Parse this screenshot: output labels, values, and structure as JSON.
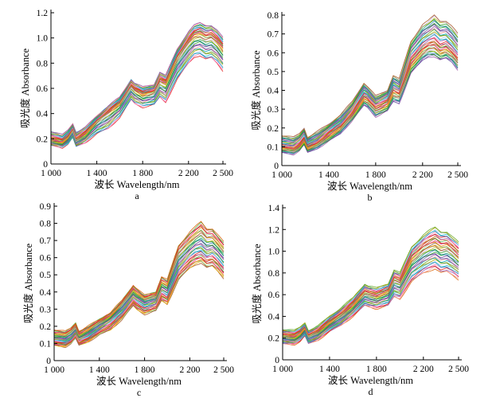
{
  "chart_data": [
    {
      "panel": "a",
      "type": "line",
      "xlabel": "波长  Wavelength/nm",
      "ylabel": "吸光度  Absorbance",
      "xlim": [
        1000,
        2500
      ],
      "ylim": [
        0,
        1.2
      ],
      "xticks": [
        "1 000",
        "1 400",
        "1 800",
        "2 200",
        "2 500"
      ],
      "xtick_values": [
        1000,
        1400,
        1800,
        2200,
        2500
      ],
      "yticks": [
        "0",
        "0.2",
        "0.4",
        "0.6",
        "0.8",
        "1.0",
        "1.2"
      ],
      "ytick_values": [
        0,
        0.2,
        0.4,
        0.6,
        0.8,
        1.0,
        1.2
      ],
      "grid": false,
      "n_spectra": 40,
      "x": [
        1000,
        1100,
        1150,
        1190,
        1220,
        1300,
        1400,
        1500,
        1600,
        1700,
        1730,
        1800,
        1900,
        1950,
        2000,
        2100,
        2200,
        2250,
        2300,
        2350,
        2400,
        2450,
        2500
      ],
      "y_low": [
        0.15,
        0.13,
        0.16,
        0.21,
        0.14,
        0.17,
        0.24,
        0.28,
        0.37,
        0.51,
        0.48,
        0.45,
        0.47,
        0.53,
        0.49,
        0.67,
        0.8,
        0.85,
        0.86,
        0.83,
        0.84,
        0.8,
        0.74
      ],
      "y_mid": [
        0.19,
        0.17,
        0.21,
        0.27,
        0.19,
        0.24,
        0.34,
        0.41,
        0.48,
        0.62,
        0.59,
        0.55,
        0.57,
        0.66,
        0.64,
        0.84,
        0.97,
        1.02,
        1.03,
        1.0,
        1.01,
        0.97,
        0.91
      ],
      "y_high": [
        0.26,
        0.23,
        0.27,
        0.32,
        0.25,
        0.29,
        0.38,
        0.46,
        0.53,
        0.67,
        0.64,
        0.61,
        0.63,
        0.73,
        0.7,
        0.91,
        1.05,
        1.1,
        1.12,
        1.1,
        1.1,
        1.06,
        1.0
      ]
    },
    {
      "panel": "b",
      "type": "line",
      "xlabel": "波长  Wavelength/nm",
      "ylabel": "吸光度  Absorbance",
      "xlim": [
        1000,
        2500
      ],
      "ylim": [
        0,
        0.8
      ],
      "xticks": [
        "1 000",
        "1 400",
        "1 800",
        "2 200",
        "2 500"
      ],
      "xtick_values": [
        1000,
        1400,
        1800,
        2200,
        2500
      ],
      "yticks": [
        "0",
        "0.1",
        "0.2",
        "0.3",
        "0.4",
        "0.5",
        "0.6",
        "0.7",
        "0.8"
      ],
      "ytick_values": [
        0,
        0.1,
        0.2,
        0.3,
        0.4,
        0.5,
        0.6,
        0.7,
        0.8
      ],
      "grid": false,
      "n_spectra": 40,
      "x": [
        1000,
        1100,
        1150,
        1190,
        1220,
        1300,
        1400,
        1500,
        1600,
        1700,
        1730,
        1800,
        1900,
        1950,
        2000,
        2100,
        2200,
        2250,
        2300,
        2350,
        2400,
        2450,
        2500
      ],
      "y_low": [
        0.07,
        0.06,
        0.08,
        0.11,
        0.07,
        0.09,
        0.13,
        0.17,
        0.24,
        0.32,
        0.31,
        0.26,
        0.29,
        0.34,
        0.33,
        0.49,
        0.56,
        0.58,
        0.58,
        0.56,
        0.57,
        0.55,
        0.51
      ],
      "y_mid": [
        0.11,
        0.1,
        0.12,
        0.15,
        0.11,
        0.13,
        0.18,
        0.22,
        0.29,
        0.38,
        0.37,
        0.32,
        0.35,
        0.42,
        0.4,
        0.57,
        0.64,
        0.66,
        0.67,
        0.64,
        0.65,
        0.62,
        0.58
      ],
      "y_high": [
        0.16,
        0.15,
        0.17,
        0.2,
        0.15,
        0.18,
        0.22,
        0.27,
        0.34,
        0.44,
        0.42,
        0.37,
        0.4,
        0.48,
        0.46,
        0.66,
        0.75,
        0.77,
        0.8,
        0.77,
        0.77,
        0.74,
        0.7
      ]
    },
    {
      "panel": "c",
      "type": "line",
      "xlabel": "波长  Wavelength/nm",
      "ylabel": "吸光度  Absorbance",
      "xlim": [
        1000,
        2500
      ],
      "ylim": [
        0,
        0.9
      ],
      "xticks": [
        "1 000",
        "1 400",
        "1 800",
        "2 200",
        "2 500"
      ],
      "xtick_values": [
        1000,
        1400,
        1800,
        2200,
        2500
      ],
      "yticks": [
        "0",
        "0.1",
        "0.2",
        "0.3",
        "0.4",
        "0.5",
        "0.6",
        "0.7",
        "0.8",
        "0.9"
      ],
      "ytick_values": [
        0,
        0.1,
        0.2,
        0.3,
        0.4,
        0.5,
        0.6,
        0.7,
        0.8,
        0.9
      ],
      "grid": false,
      "n_spectra": 40,
      "x": [
        1000,
        1100,
        1150,
        1190,
        1220,
        1300,
        1400,
        1500,
        1600,
        1700,
        1730,
        1800,
        1900,
        1950,
        2000,
        2100,
        2200,
        2250,
        2300,
        2350,
        2400,
        2450,
        2500
      ],
      "y_low": [
        0.09,
        0.08,
        0.1,
        0.13,
        0.09,
        0.11,
        0.15,
        0.18,
        0.24,
        0.32,
        0.3,
        0.27,
        0.29,
        0.35,
        0.33,
        0.47,
        0.54,
        0.56,
        0.57,
        0.54,
        0.55,
        0.52,
        0.48
      ],
      "y_mid": [
        0.13,
        0.12,
        0.14,
        0.17,
        0.13,
        0.15,
        0.2,
        0.24,
        0.3,
        0.38,
        0.36,
        0.33,
        0.35,
        0.42,
        0.4,
        0.56,
        0.63,
        0.66,
        0.67,
        0.64,
        0.65,
        0.62,
        0.58
      ],
      "y_high": [
        0.18,
        0.17,
        0.19,
        0.22,
        0.17,
        0.2,
        0.24,
        0.28,
        0.35,
        0.44,
        0.42,
        0.38,
        0.4,
        0.49,
        0.47,
        0.67,
        0.75,
        0.78,
        0.81,
        0.77,
        0.77,
        0.73,
        0.69
      ]
    },
    {
      "panel": "d",
      "type": "line",
      "xlabel": "波长  Wavelength/nm",
      "ylabel": "吸光度  Absorbance",
      "xlim": [
        1000,
        2500
      ],
      "ylim": [
        0,
        1.4
      ],
      "xticks": [
        "1 000",
        "1 400",
        "1 800",
        "2 200",
        "2 500"
      ],
      "xtick_values": [
        1000,
        1400,
        1800,
        2200,
        2500
      ],
      "yticks": [
        "0",
        "0.2",
        "0.4",
        "0.6",
        "0.8",
        "1.0",
        "1.2",
        "1.4"
      ],
      "ytick_values": [
        0,
        0.2,
        0.4,
        0.6,
        0.8,
        1.0,
        1.2,
        1.4
      ],
      "grid": false,
      "n_spectra": 40,
      "x": [
        1000,
        1100,
        1150,
        1190,
        1220,
        1300,
        1400,
        1500,
        1600,
        1700,
        1730,
        1800,
        1900,
        1950,
        2000,
        2100,
        2200,
        2250,
        2300,
        2350,
        2400,
        2450,
        2500
      ],
      "y_low": [
        0.15,
        0.14,
        0.17,
        0.22,
        0.15,
        0.18,
        0.26,
        0.32,
        0.4,
        0.5,
        0.49,
        0.47,
        0.5,
        0.58,
        0.56,
        0.72,
        0.8,
        0.82,
        0.84,
        0.8,
        0.81,
        0.78,
        0.74
      ],
      "y_mid": [
        0.21,
        0.2,
        0.23,
        0.28,
        0.21,
        0.25,
        0.33,
        0.4,
        0.49,
        0.6,
        0.59,
        0.57,
        0.61,
        0.72,
        0.7,
        0.9,
        0.99,
        1.02,
        1.04,
        1.0,
        1.01,
        0.97,
        0.92
      ],
      "y_high": [
        0.28,
        0.27,
        0.3,
        0.34,
        0.27,
        0.31,
        0.4,
        0.48,
        0.57,
        0.7,
        0.68,
        0.66,
        0.7,
        0.83,
        0.8,
        1.04,
        1.15,
        1.19,
        1.22,
        1.18,
        1.18,
        1.13,
        1.08
      ]
    }
  ]
}
